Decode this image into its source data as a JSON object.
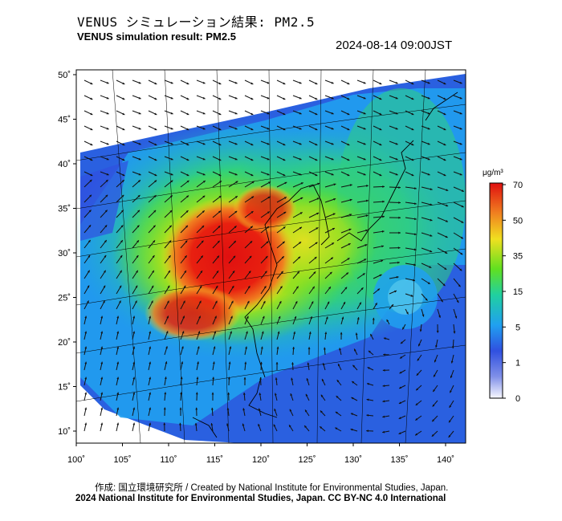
{
  "header": {
    "title_jp": "VENUS シミュレーション結果: PM2.5",
    "title_en": "VENUS simulation result: PM2.5",
    "timestamp": "2024-08-14 09:00JST"
  },
  "map": {
    "lon_ticks": [
      "100˚",
      "105˚",
      "110˚",
      "115˚",
      "120˚",
      "125˚",
      "130˚",
      "135˚",
      "140˚"
    ],
    "lat_ticks": [
      "50˚",
      "45˚",
      "40˚",
      "35˚",
      "30˚",
      "25˚",
      "20˚",
      "15˚",
      "10˚"
    ],
    "lon_range": [
      100,
      141
    ],
    "lat_range": [
      9,
      51
    ]
  },
  "colorbar": {
    "unit": "μg/m³",
    "ticks": [
      "70",
      "50",
      "35",
      "15",
      "5",
      "1",
      "0"
    ],
    "colors": [
      "#f0f0ff",
      "#3050e0",
      "#20a0f0",
      "#20d0a0",
      "#60e020",
      "#f0e020",
      "#f08020",
      "#e01010"
    ]
  },
  "footer": {
    "credit_1": "作成: 国立環境研究所 / Created by National Institute for Environmental Studies, Japan.",
    "credit_2": "2024 National Institute for Environmental Studies, Japan. CC BY-NC 4.0 International"
  }
}
